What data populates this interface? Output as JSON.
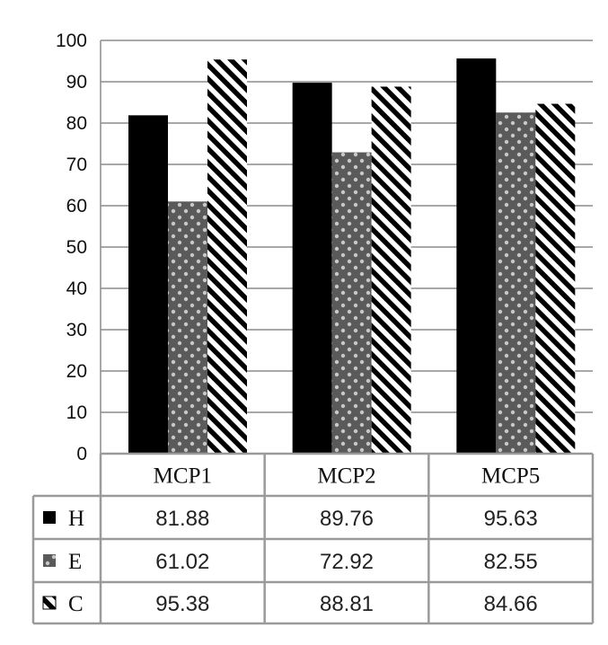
{
  "chart_data": {
    "type": "bar",
    "categories": [
      "MCP1",
      "MCP2",
      "MCP5"
    ],
    "series": [
      {
        "name": "H",
        "values": [
          81.88,
          89.76,
          95.63
        ],
        "labels": [
          "81.88",
          "89.76",
          "95.63"
        ],
        "color": "#000000",
        "pattern": "solid"
      },
      {
        "name": "E",
        "values": [
          61.02,
          72.92,
          82.55
        ],
        "labels": [
          "61.02",
          "72.92",
          "82.55"
        ],
        "color": "#5a5a5a",
        "pattern": "dotted"
      },
      {
        "name": "C",
        "values": [
          95.38,
          88.81,
          84.66
        ],
        "labels": [
          "95.38",
          "88.81",
          "84.66"
        ],
        "color": "#000000",
        "pattern": "diagonal-stripes"
      }
    ],
    "yticks": [
      "0",
      "10",
      "20",
      "30",
      "40",
      "50",
      "60",
      "70",
      "80",
      "90",
      "100"
    ],
    "ylim": [
      0,
      100
    ],
    "grid": true,
    "legend": "data-table"
  }
}
